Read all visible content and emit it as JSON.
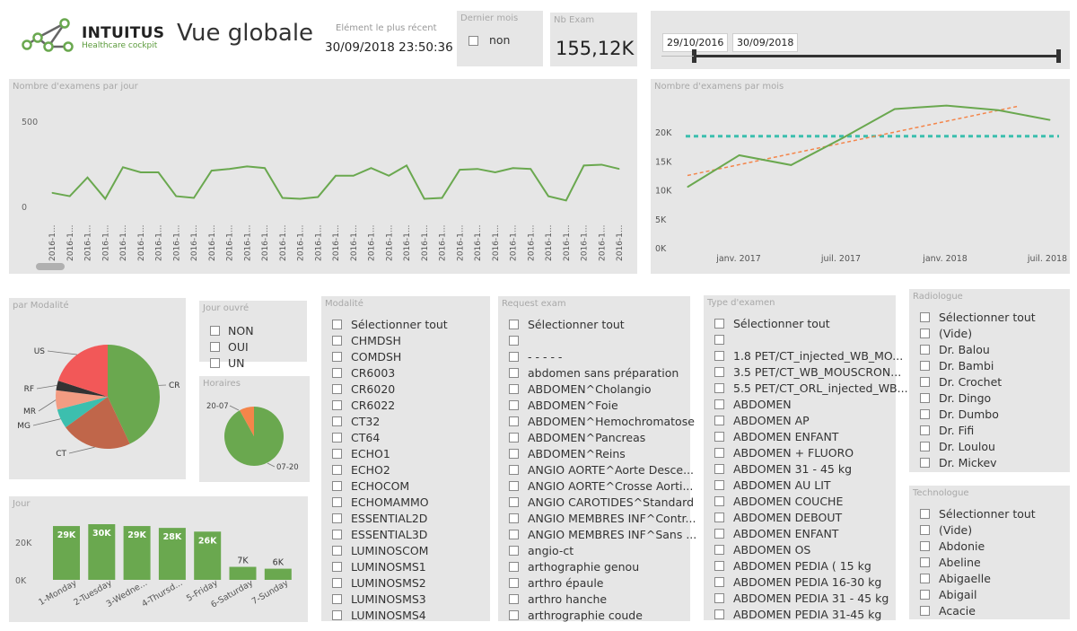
{
  "header": {
    "logo_name": "INTUITUS",
    "logo_sub": "Healthcare cockpit",
    "page_title": "Vue globale",
    "recent_label": "Elément le plus récent",
    "recent_value": "30/09/2018 23:50:36"
  },
  "dernier_mois": {
    "title": "Dernier mois",
    "option": "non"
  },
  "nb_exam": {
    "title": "Nb Exam",
    "value": "155,12K"
  },
  "date_range": {
    "start": "29/10/2016",
    "end": "30/09/2018"
  },
  "exams_per_day": {
    "title": "Nombre d'examens par jour",
    "y_ticks": [
      "500",
      "0"
    ],
    "x_label": "2016-1..."
  },
  "exams_per_month": {
    "title": "Nombre d'examens par mois",
    "y_ticks": [
      "20K",
      "15K",
      "10K",
      "5K",
      "0K"
    ],
    "x_ticks": [
      "janv. 2017",
      "juil. 2017",
      "janv. 2018",
      "juil. 2018"
    ]
  },
  "modalite_pie": {
    "title": "par Modalité",
    "labels": [
      "US",
      "RF",
      "MR",
      "MG",
      "CT",
      "CR"
    ]
  },
  "jour_ouvre": {
    "title": "Jour ouvré",
    "options": [
      "NON",
      "OUI",
      "UN"
    ]
  },
  "horaires": {
    "title": "Horaires",
    "labels": [
      "20-07",
      "07-20"
    ]
  },
  "jour_chart": {
    "title": "Jour",
    "y_ticks": [
      "20K",
      "0K"
    ]
  },
  "modalite_slicer": {
    "title": "Modalité",
    "items": [
      "Sélectionner tout",
      "CHMDSH",
      "COMDSH",
      "CR6003",
      "CR6020",
      "CR6022",
      "CT32",
      "CT64",
      "ECHO1",
      "ECHO2",
      "ECHOCOM",
      "ECHOMAMMO",
      "ESSENTIAL2D",
      "ESSENTIAL3D",
      "LUMINOSCOM",
      "LUMINOSMS1",
      "LUMINOSMS2",
      "LUMINOSMS3",
      "LUMINOSMS4"
    ]
  },
  "request_slicer": {
    "title": "Request exam",
    "items": [
      "Sélectionner tout",
      "",
      "- - - - -",
      "abdomen sans préparation",
      "ABDOMEN^Cholangio",
      "ABDOMEN^Foie",
      "ABDOMEN^Hemochromatose",
      "ABDOMEN^Pancreas",
      "ABDOMEN^Reins",
      "ANGIO AORTE^Aorte Desce...",
      "ANGIO AORTE^Crosse Aorti...",
      "ANGIO CAROTIDES^Standard",
      "ANGIO MEMBRES INF^Contr...",
      "ANGIO MEMBRES INF^Sans ...",
      "angio-ct",
      "arthographie genou",
      "arthro épaule",
      "arthro hanche",
      "arthrographie coude"
    ]
  },
  "type_slicer": {
    "title": "Type d'examen",
    "items": [
      "Sélectionner tout",
      "",
      "1.8 PET/CT_injected_WB_MO...",
      "3.5 PET/CT_WB_MOUSCRON...",
      "5.5 PET/CT_ORL_injected_WB...",
      "ABDOMEN",
      "ABDOMEN AP",
      "ABDOMEN ENFANT",
      "ABDOMEN + FLUORO",
      "ABDOMEN 31 - 45 kg",
      "ABDOMEN AU LIT",
      "ABDOMEN COUCHE",
      "ABDOMEN DEBOUT",
      "ABDOMEN ENFANT",
      "ABDOMEN OS",
      "ABDOMEN PEDIA ( 15 kg",
      "ABDOMEN PEDIA 16-30 kg",
      "ABDOMEN PEDIA 31 - 45 kg",
      "ABDOMEN PEDIA 31-45 kg"
    ]
  },
  "radiologue_slicer": {
    "title": "Radiologue",
    "items": [
      "Sélectionner tout",
      "(Vide)",
      "Dr. Balou",
      "Dr. Bambi",
      "Dr. Crochet",
      "Dr. Dingo",
      "Dr. Dumbo",
      "Dr. Fifi",
      "Dr. Loulou",
      "Dr. Mickev"
    ]
  },
  "technologue_slicer": {
    "title": "Technologue",
    "items": [
      "Sélectionner tout",
      "(Vide)",
      "Abdonie",
      "Abeline",
      "Abigaelle",
      "Abigail",
      "Acacie"
    ]
  },
  "colors": {
    "green": "#6aa84f",
    "card_bg": "#e6e6e6",
    "teal": "#3cbfae",
    "orange": "#f4854a",
    "red": "#f25858",
    "brown": "#c0664a",
    "salmon": "#f39c82",
    "dark": "#333333"
  },
  "chart_data": [
    {
      "type": "line",
      "title": "Nombre d'examens par jour",
      "ylim": [
        0,
        500
      ],
      "values": [
        80,
        60,
        170,
        45,
        230,
        200,
        200,
        60,
        50,
        210,
        220,
        235,
        225,
        50,
        45,
        55,
        180,
        180,
        225,
        180,
        240,
        45,
        50,
        215,
        220,
        200,
        225,
        220,
        60,
        35,
        240,
        245,
        220
      ]
    },
    {
      "type": "line",
      "title": "Nombre d'examens par mois",
      "ylim": [
        0,
        25000
      ],
      "x_ticks": [
        "janv. 2017",
        "juil. 2017",
        "janv. 2018",
        "juil. 2018"
      ],
      "values": [
        10500,
        16000,
        14300,
        19000,
        24000,
        24600,
        23800,
        22100
      ],
      "reference_line": 19300,
      "trend_line": [
        12500,
        24500
      ]
    },
    {
      "type": "pie",
      "title": "par Modalité",
      "series": [
        {
          "label": "CR",
          "value": 43,
          "color": "#6aa84f"
        },
        {
          "label": "CT",
          "value": 22,
          "color": "#c0664a"
        },
        {
          "label": "MG",
          "value": 6,
          "color": "#3cbfae"
        },
        {
          "label": "MR",
          "value": 6,
          "color": "#f39c82"
        },
        {
          "label": "RF",
          "value": 3,
          "color": "#333333"
        },
        {
          "label": "US",
          "value": 20,
          "color": "#f25858"
        }
      ]
    },
    {
      "type": "pie",
      "title": "Horaires",
      "series": [
        {
          "label": "07-20",
          "value": 92,
          "color": "#6aa84f"
        },
        {
          "label": "20-07",
          "value": 8,
          "color": "#f4854a"
        }
      ]
    },
    {
      "type": "bar",
      "title": "Jour",
      "categories": [
        "1-Monday",
        "2-Tuesday",
        "3-Wedne...",
        "4-Thursd...",
        "5-Friday",
        "6-Saturday",
        "7-Sunday"
      ],
      "values": [
        29,
        30,
        29,
        28,
        26,
        7,
        6
      ],
      "data_labels": [
        "29K",
        "30K",
        "29K",
        "28K",
        "26K",
        "7K",
        "6K"
      ],
      "ylim": [
        0,
        30
      ]
    }
  ]
}
